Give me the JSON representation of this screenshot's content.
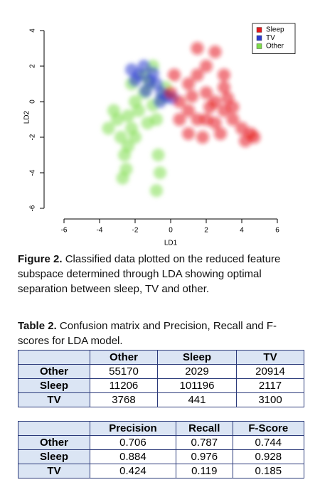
{
  "chart_data": {
    "type": "scatter",
    "x_label": "LD1",
    "y_label": "LD2",
    "xlim": [
      -6.6,
      6.6
    ],
    "ylim": [
      -6.3,
      4.5
    ],
    "xticks": [
      -6,
      -4,
      -2,
      0,
      2,
      4,
      6
    ],
    "yticks": [
      -6,
      -4,
      -2,
      0,
      2,
      4
    ],
    "legend": "top-right",
    "series": [
      {
        "name": "Sleep",
        "color": "#e5191d",
        "x": [
          0,
          0.5,
          1,
          1.5,
          2,
          2.5,
          3,
          3.5,
          4,
          4.5,
          1,
          1.5,
          2,
          2.5,
          3,
          3.5,
          0.5,
          1,
          2,
          3,
          1.5,
          2.5,
          4.2,
          4.7,
          0.2,
          1.2,
          2.2,
          3.2,
          1.8,
          2.8
        ],
        "y": [
          0.5,
          0,
          1,
          1.5,
          0.5,
          0,
          -0.5,
          -1,
          -1.5,
          -1.8,
          -0.5,
          -1,
          -1,
          -1.2,
          0.8,
          -0.3,
          -1,
          -1.8,
          2,
          1.5,
          3,
          2.8,
          -2.2,
          -2,
          1.5,
          0.3,
          -0.3,
          0.2,
          -2,
          -1.8
        ]
      },
      {
        "name": "TV",
        "color": "#2a3ad0",
        "x": [
          -2.2,
          -1.8,
          -1.5,
          -1.2,
          -0.8,
          -0.5,
          -0.2,
          -2,
          -1,
          -0.6,
          -1.4,
          0.1
        ],
        "y": [
          1.8,
          1.5,
          2,
          1.2,
          1,
          0.5,
          0.3,
          1.2,
          1.6,
          0,
          0.6,
          0.2
        ]
      },
      {
        "name": "Other",
        "color": "#7ddc4a",
        "x": [
          -3,
          -2.8,
          -2.6,
          -2.4,
          -2.2,
          -2,
          -1.8,
          -1.5,
          -1.2,
          -1,
          -0.8,
          -0.5,
          -3.2,
          -2.5,
          -2,
          -1.5,
          -1,
          -0.7,
          -0.8,
          -2.7,
          -3.5,
          -2.2,
          -1.3,
          -0.3,
          -2.4,
          -0.6
        ],
        "y": [
          -1,
          -2,
          -3,
          -2.5,
          -1.5,
          0,
          -0.5,
          0.5,
          1,
          -0.2,
          -1,
          0.2,
          -0.5,
          -3.8,
          -2,
          1.5,
          2,
          -3,
          -5,
          -4.3,
          -1.5,
          1,
          -1.2,
          0.8,
          -0.8,
          -4
        ]
      }
    ]
  },
  "figure_caption": {
    "label": "Figure 2.",
    "text": "Classified data plotted on the reduced feature subspace determined through LDA showing optimal separation between sleep, TV and other."
  },
  "table_caption": {
    "label": "Table 2.",
    "text": "Confusion matrix and Precision, Recall and F-scores for LDA model."
  },
  "tables": [
    {
      "header": [
        "Other",
        "Sleep",
        "TV"
      ],
      "rows": [
        {
          "label": "Other",
          "values": [
            55170,
            2029,
            20914
          ]
        },
        {
          "label": "Sleep",
          "values": [
            11206,
            101196,
            2117
          ]
        },
        {
          "label": "TV",
          "values": [
            3768,
            441,
            3100
          ]
        }
      ]
    },
    {
      "header": [
        "Precision",
        "Recall",
        "F-Score"
      ],
      "rows": [
        {
          "label": "Other",
          "values": [
            0.706,
            0.787,
            0.744
          ]
        },
        {
          "label": "Sleep",
          "values": [
            0.884,
            0.976,
            0.928
          ]
        },
        {
          "label": "TV",
          "values": [
            0.424,
            0.119,
            0.185
          ]
        }
      ]
    }
  ]
}
